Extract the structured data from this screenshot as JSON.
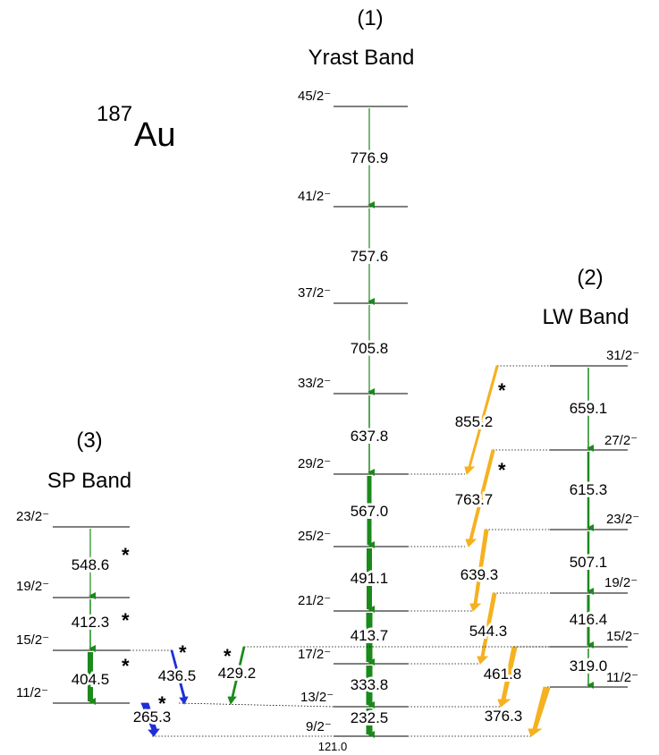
{
  "nucleus": {
    "mass": "187",
    "symbol": "Au"
  },
  "bands": [
    {
      "number": "(1)",
      "name": "Yrast Band"
    },
    {
      "number": "(2)",
      "name": "LW Band"
    },
    {
      "number": "(3)",
      "name": "SP Band"
    }
  ],
  "levels": {
    "yrast": [
      "45/2⁻",
      "41/2⁻",
      "37/2⁻",
      "33/2⁻",
      "29/2⁻",
      "25/2⁻",
      "21/2⁻",
      "17/2⁻",
      "13/2⁻",
      "9/2⁻"
    ],
    "lw": [
      "31/2⁻",
      "27/2⁻",
      "23/2⁻",
      "19/2⁻",
      "15/2⁻",
      "11/2⁻"
    ],
    "sp": [
      "23/2⁻",
      "19/2⁻",
      "15/2⁻",
      "11/2⁻"
    ]
  },
  "transitions": {
    "yrast": [
      "776.9",
      "757.6",
      "705.8",
      "637.8",
      "567.0",
      "491.1",
      "413.7",
      "333.8",
      "232.5",
      "121.0"
    ],
    "lw": [
      "659.1",
      "615.3",
      "507.1",
      "416.4",
      "319.0"
    ],
    "lw_to_yrast": [
      "855.2",
      "763.7",
      "639.3",
      "544.3",
      "461.8",
      "376.3"
    ],
    "sp": [
      "548.6",
      "412.3",
      "404.5"
    ],
    "sp_to_yrast": [
      "436.5",
      "429.2",
      "265.3"
    ]
  },
  "marks": {
    "new": "*"
  },
  "colors": {
    "intraband": "#1a8a1a",
    "lw_link": "#f5b120",
    "sp_link": "#1f2fd6",
    "level": "#000000"
  }
}
